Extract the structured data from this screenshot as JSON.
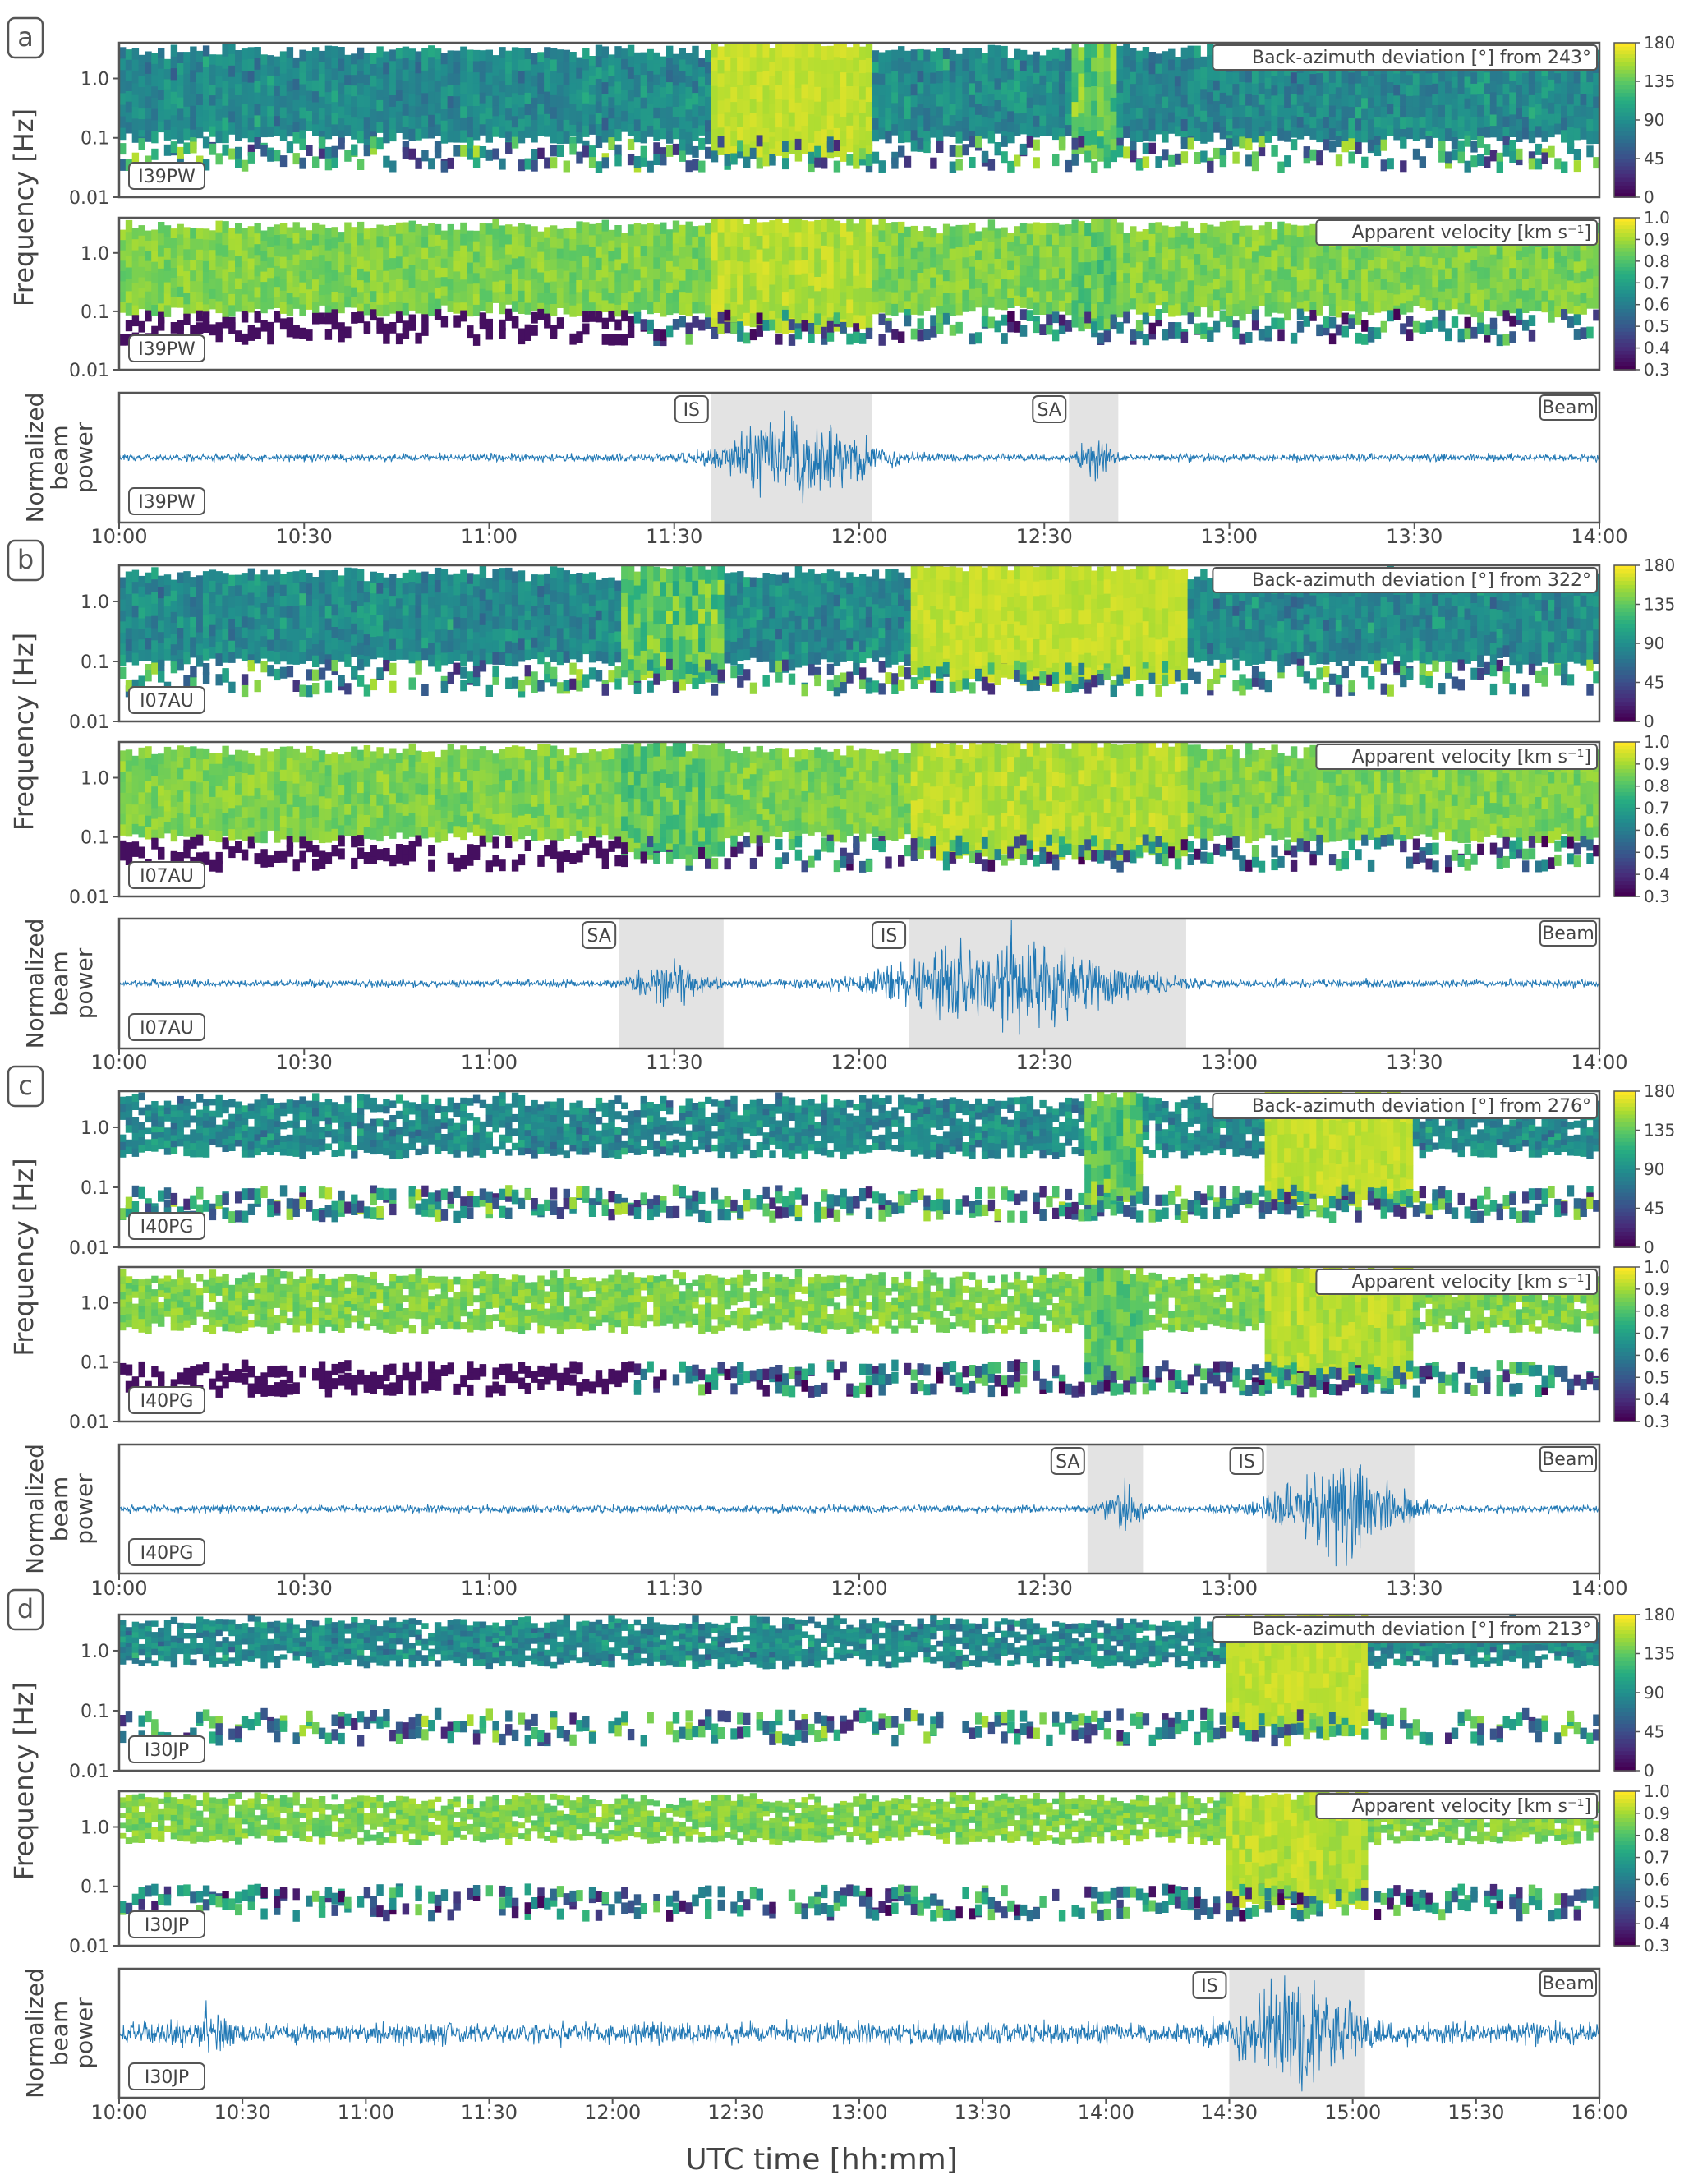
{
  "figure": {
    "xlabel": "UTC time [hh:mm]",
    "ylabel_freq": "Frequency [Hz]",
    "ylabel_beam": [
      "Normalized",
      "beam",
      "power"
    ],
    "freq_ticks": [
      "1.0",
      "0.1",
      "0.01"
    ],
    "beam_label": "Beam"
  },
  "chart_data": [
    {
      "panel": "a",
      "station": "I39PW",
      "type": "heatmap",
      "time_range": [
        "10:00",
        "14:00"
      ],
      "xticks": [
        "10:00",
        "10:30",
        "11:00",
        "11:30",
        "12:00",
        "12:30",
        "13:00",
        "13:30",
        "14:00"
      ],
      "baz_title": "Back-azimuth deviation [°] from 243°",
      "baz_colorbar_ticks": [
        "180",
        "135",
        "90",
        "45",
        "0"
      ],
      "vel_title": "Apparent velocity [km s⁻¹]",
      "vel_colorbar_ticks": [
        "1.0",
        "0.9",
        "0.8",
        "0.7",
        "0.6",
        "0.5",
        "0.4",
        "0.3"
      ],
      "ylim_hz": [
        0.01,
        4
      ],
      "signals": [
        {
          "label": "IS",
          "start": "11:36",
          "end": "12:02",
          "peak": "11:50"
        },
        {
          "label": "SA",
          "start": "12:34",
          "end": "12:42",
          "peak": null
        }
      ]
    },
    {
      "panel": "b",
      "station": "I07AU",
      "type": "heatmap",
      "time_range": [
        "10:00",
        "14:00"
      ],
      "xticks": [
        "10:00",
        "10:30",
        "11:00",
        "11:30",
        "12:00",
        "12:30",
        "13:00",
        "13:30",
        "14:00"
      ],
      "baz_title": "Back-azimuth deviation [°] from 322°",
      "baz_colorbar_ticks": [
        "180",
        "135",
        "90",
        "45",
        "0"
      ],
      "vel_title": "Apparent velocity [km s⁻¹]",
      "vel_colorbar_ticks": [
        "1.0",
        "0.9",
        "0.8",
        "0.7",
        "0.6",
        "0.5",
        "0.4",
        "0.3"
      ],
      "ylim_hz": [
        0.01,
        4
      ],
      "signals": [
        {
          "label": "SA",
          "start": "11:21",
          "end": "11:38",
          "peak": null
        },
        {
          "label": "IS",
          "start": "12:08",
          "end": "12:53",
          "peak": "12:24"
        }
      ]
    },
    {
      "panel": "c",
      "station": "I40PG",
      "type": "heatmap",
      "time_range": [
        "10:00",
        "14:00"
      ],
      "xticks": [
        "10:00",
        "10:30",
        "11:00",
        "11:30",
        "12:00",
        "12:30",
        "13:00",
        "13:30",
        "14:00"
      ],
      "baz_title": "Back-azimuth deviation [°] from 276°",
      "baz_colorbar_ticks": [
        "180",
        "135",
        "90",
        "45",
        "0"
      ],
      "vel_title": "Apparent velocity [km s⁻¹]",
      "vel_colorbar_ticks": [
        "1.0",
        "0.9",
        "0.8",
        "0.7",
        "0.6",
        "0.5",
        "0.4",
        "0.3"
      ],
      "ylim_hz": [
        0.01,
        4
      ],
      "signals": [
        {
          "label": "SA",
          "start": "12:37",
          "end": "12:46",
          "peak": "12:43"
        },
        {
          "label": "IS",
          "start": "13:06",
          "end": "13:30",
          "peak": null
        }
      ]
    },
    {
      "panel": "d",
      "station": "I30JP",
      "type": "heatmap",
      "time_range": [
        "10:00",
        "16:00"
      ],
      "xticks": [
        "10:00",
        "10:30",
        "11:00",
        "11:30",
        "12:00",
        "12:30",
        "13:00",
        "13:30",
        "14:00",
        "14:30",
        "15:00",
        "15:30",
        "16:00"
      ],
      "baz_title": "Back-azimuth deviation [°] from 213°",
      "baz_colorbar_ticks": [
        "180",
        "135",
        "90",
        "45",
        "0"
      ],
      "vel_title": "Apparent velocity [km s⁻¹]",
      "vel_colorbar_ticks": [
        "1.0",
        "0.9",
        "0.8",
        "0.7",
        "0.6",
        "0.5",
        "0.4",
        "0.3"
      ],
      "ylim_hz": [
        0.01,
        4
      ],
      "signals": [
        {
          "label": "IS",
          "start": "14:30",
          "end": "15:03",
          "peak": "14:48"
        }
      ]
    }
  ]
}
